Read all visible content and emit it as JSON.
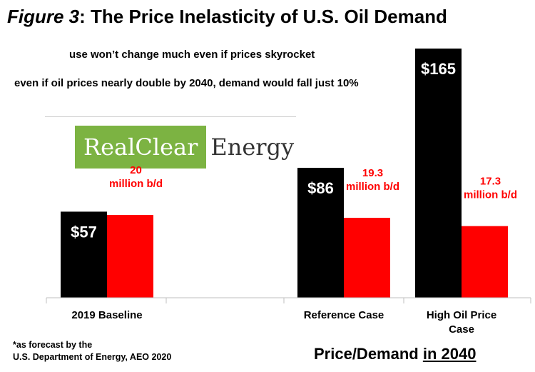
{
  "title": {
    "figure": "Figure 3",
    "rest": ": The Price Inelasticity of U.S. Oil Demand"
  },
  "subtitle_1": "use won’t change much even if prices skyrocket",
  "subtitle_2": "even if oil prices nearly double by 2040, demand would fall just 10%",
  "logo": {
    "part_1": "RealClear",
    "part_2": "Energy"
  },
  "footnote_1": "*as forecast by the",
  "footnote_2": "U.S. Department of Energy, AEO 2020",
  "caption": {
    "part_1": "Price/Demand ",
    "part_2": "in 2040"
  },
  "colors": {
    "price": "#000000",
    "demand": "#ff0000",
    "demand_label": "#ff0000"
  },
  "chart_data": {
    "type": "bar",
    "categories": [
      [
        "2019 Baseline"
      ],
      [
        "Reference Case"
      ],
      [
        "High Oil Price",
        "Case"
      ]
    ],
    "series": [
      {
        "values": [
          57,
          86,
          165
        ],
        "labels": [
          "$57",
          "$86",
          "$165"
        ]
      },
      {
        "values": [
          20,
          19.3,
          17.3
        ],
        "labels": [
          [
            "20",
            "million b/d"
          ],
          [
            "19.3",
            "million b/d"
          ],
          [
            "17.3",
            "million b/d"
          ]
        ]
      }
    ],
    "ylim": [
      0,
      175
    ],
    "grid": false,
    "legend": "none"
  }
}
